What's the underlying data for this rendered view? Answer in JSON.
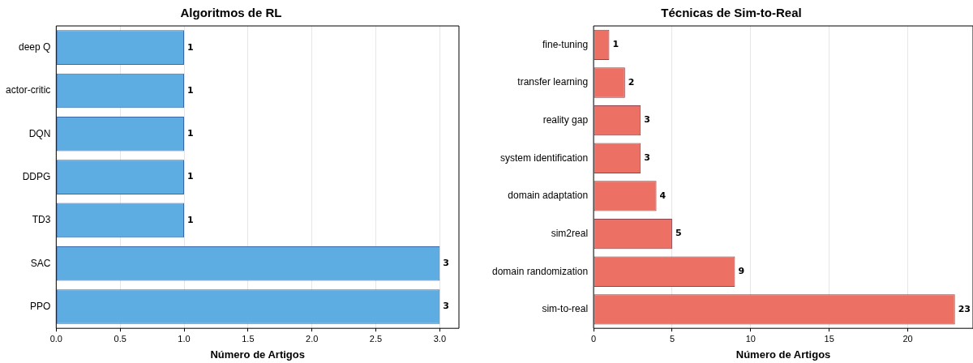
{
  "chart_data": [
    {
      "type": "bar",
      "orientation": "horizontal",
      "title": "Algoritmos de RL",
      "xlabel": "Número de Artigos",
      "categories": [
        "deep Q",
        "actor-critic",
        "DQN",
        "DDPG",
        "TD3",
        "SAC",
        "PPO"
      ],
      "values": [
        1,
        1,
        1,
        1,
        1,
        3,
        3
      ],
      "color": "#5dade2",
      "xlim": [
        0,
        3.15
      ],
      "xticks": [
        {
          "value": 0,
          "label": "0.0"
        },
        {
          "value": 0.5,
          "label": "0.5"
        },
        {
          "value": 1,
          "label": "1.0"
        },
        {
          "value": 1.5,
          "label": "1.5"
        },
        {
          "value": 2,
          "label": "2.0"
        },
        {
          "value": 2.5,
          "label": "2.5"
        },
        {
          "value": 3,
          "label": "3.0"
        }
      ],
      "grid": "x",
      "data_labels": true
    },
    {
      "type": "bar",
      "orientation": "horizontal",
      "title": "Técnicas de Sim-to-Real",
      "xlabel": "Número de Artigos",
      "categories": [
        "fine-tuning",
        "transfer learning",
        "reality gap",
        "system identification",
        "domain adaptation",
        "sim2real",
        "domain randomization",
        "sim-to-real"
      ],
      "values": [
        1,
        2,
        3,
        3,
        4,
        5,
        9,
        23
      ],
      "color": "#ec7063",
      "xlim": [
        0,
        24.15
      ],
      "xticks": [
        0,
        5,
        10,
        15,
        20
      ],
      "grid": "x",
      "data_labels": true
    }
  ]
}
